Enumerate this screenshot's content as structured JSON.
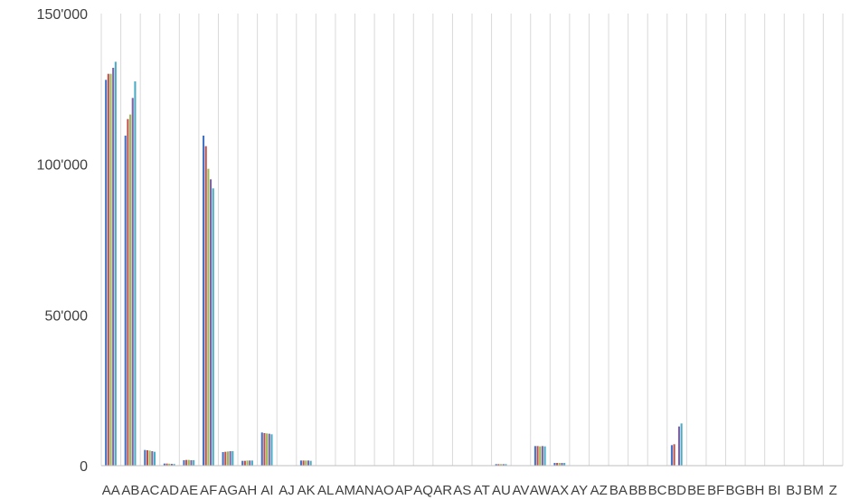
{
  "chart_data": {
    "type": "bar",
    "title": "",
    "xlabel": "",
    "ylabel": "",
    "ylim": [
      0,
      150000
    ],
    "yticks": [
      {
        "value": 0,
        "label": "0"
      },
      {
        "value": 50000,
        "label": "50'000"
      },
      {
        "value": 100000,
        "label": "100'000"
      },
      {
        "value": 150000,
        "label": "150'000"
      }
    ],
    "grid": "vertical category separators",
    "legend": "none",
    "series_colors": [
      "#4472C4",
      "#C0504D",
      "#9BBB59",
      "#8064A2",
      "#4BACC6",
      "#F79646"
    ],
    "categories": [
      "AA",
      "AB",
      "AC",
      "AD",
      "AE",
      "AF",
      "AG",
      "AH",
      "AI",
      "AJ",
      "AK",
      "AL",
      "AM",
      "AN",
      "AO",
      "AP",
      "AQ",
      "AR",
      "AS",
      "AT",
      "AU",
      "AV",
      "AW",
      "AX",
      "AY",
      "AZ",
      "BA",
      "BB",
      "BC",
      "BD",
      "BE",
      "BF",
      "BG",
      "BH",
      "BI",
      "BJ",
      "BM",
      "Z"
    ],
    "values": [
      [
        128000,
        130000,
        130000,
        132000,
        134000
      ],
      [
        109500,
        115000,
        116500,
        122000,
        127500
      ],
      [
        5200,
        5100,
        5000,
        4800,
        4600
      ],
      [
        700,
        700,
        650,
        600,
        550
      ],
      [
        1800,
        1900,
        1900,
        1800,
        1800
      ],
      [
        109500,
        106000,
        98500,
        95000,
        92000
      ],
      [
        4500,
        4600,
        4700,
        4800,
        4800
      ],
      [
        1600,
        1600,
        1700,
        1700,
        1700
      ],
      [
        11000,
        10800,
        10700,
        10600,
        10400
      ],
      [
        0,
        0,
        0,
        0,
        0
      ],
      [
        1700,
        1700,
        1700,
        1700,
        1600
      ],
      [
        0,
        0,
        0,
        0,
        0
      ],
      [
        0,
        0,
        0,
        0,
        0
      ],
      [
        0,
        0,
        0,
        0,
        0
      ],
      [
        0,
        0,
        0,
        0,
        0
      ],
      [
        0,
        0,
        0,
        0,
        0
      ],
      [
        0,
        0,
        0,
        0,
        0
      ],
      [
        0,
        0,
        0,
        0,
        0
      ],
      [
        0,
        0,
        0,
        0,
        0
      ],
      [
        0,
        0,
        0,
        0,
        0
      ],
      [
        500,
        500,
        500,
        500,
        500
      ],
      [
        0,
        0,
        0,
        0,
        0
      ],
      [
        6500,
        6500,
        6400,
        6500,
        6400
      ],
      [
        900,
        900,
        900,
        900,
        900
      ],
      [
        0,
        0,
        0,
        0,
        0
      ],
      [
        0,
        0,
        0,
        0,
        0
      ],
      [
        0,
        0,
        0,
        0,
        0
      ],
      [
        0,
        0,
        0,
        0,
        0
      ],
      [
        0,
        0,
        0,
        0,
        0
      ],
      [
        6800,
        7100,
        0,
        13000,
        14000
      ],
      [
        0,
        0,
        0,
        0,
        0
      ],
      [
        0,
        0,
        0,
        0,
        0
      ],
      [
        0,
        0,
        0,
        0,
        0
      ],
      [
        0,
        0,
        0,
        0,
        0
      ],
      [
        0,
        0,
        0,
        0,
        0
      ],
      [
        0,
        0,
        0,
        0,
        0
      ],
      [
        0,
        0,
        0,
        0,
        0
      ],
      [
        0,
        0,
        0,
        0,
        0
      ]
    ]
  }
}
